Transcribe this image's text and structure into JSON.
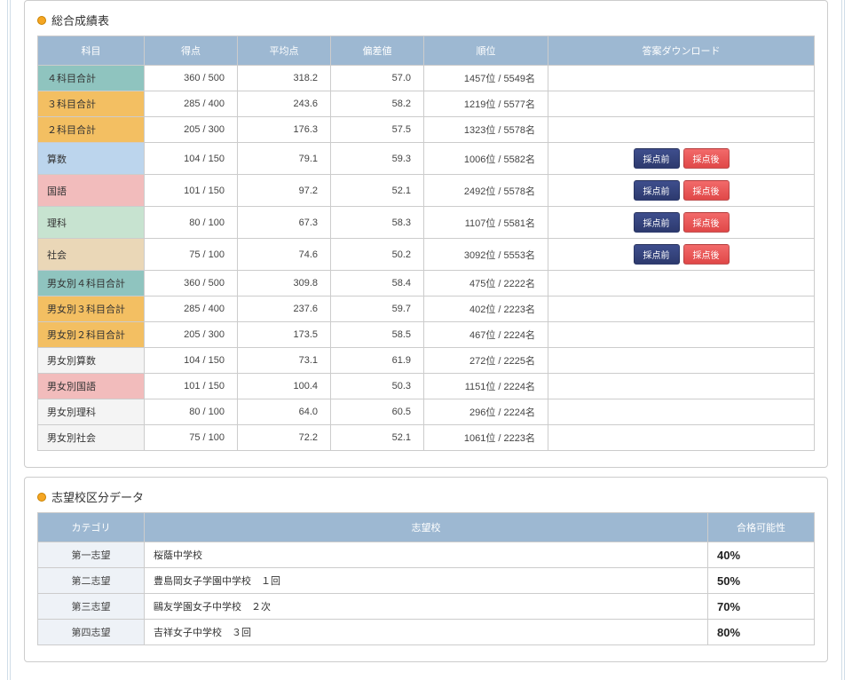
{
  "colors": {
    "header_bg": "#9db8d2",
    "header_text": "#ffffff",
    "row_teal": "#8fc4bf",
    "row_orange": "#f3bf62",
    "row_blue": "#bcd5ed",
    "row_pink": "#f2bcbc",
    "row_mint": "#c7e3d0",
    "row_beige": "#ead7b7",
    "row_plain": "#f4f4f4",
    "cat_bg": "#eef2f7",
    "btn_blue": "#2d3a6e",
    "btn_red": "#e04848"
  },
  "score": {
    "title": "総合成績表",
    "headers": [
      "科目",
      "得点",
      "平均点",
      "偏差値",
      "順位",
      "答案ダウンロード"
    ],
    "btn_before": "採点前",
    "btn_after": "採点後",
    "rows": [
      {
        "subject": "４科目合計",
        "color": "row_teal",
        "score": "360 / 500",
        "avg": "318.2",
        "dev": "57.0",
        "rank": "1457位 / 5549名",
        "buttons": false
      },
      {
        "subject": "３科目合計",
        "color": "row_orange",
        "score": "285 / 400",
        "avg": "243.6",
        "dev": "58.2",
        "rank": "1219位 / 5577名",
        "buttons": false
      },
      {
        "subject": "２科目合計",
        "color": "row_orange",
        "score": "205 / 300",
        "avg": "176.3",
        "dev": "57.5",
        "rank": "1323位 / 5578名",
        "buttons": false
      },
      {
        "subject": "算数",
        "color": "row_blue",
        "score": "104 / 150",
        "avg": "79.1",
        "dev": "59.3",
        "rank": "1006位 / 5582名",
        "buttons": true
      },
      {
        "subject": "国語",
        "color": "row_pink",
        "score": "101 / 150",
        "avg": "97.2",
        "dev": "52.1",
        "rank": "2492位 / 5578名",
        "buttons": true
      },
      {
        "subject": "理科",
        "color": "row_mint",
        "score": "80 / 100",
        "avg": "67.3",
        "dev": "58.3",
        "rank": "1107位 / 5581名",
        "buttons": true
      },
      {
        "subject": "社会",
        "color": "row_beige",
        "score": "75 / 100",
        "avg": "74.6",
        "dev": "50.2",
        "rank": "3092位 / 5553名",
        "buttons": true
      },
      {
        "subject": "男女別４科目合計",
        "color": "row_teal",
        "score": "360 / 500",
        "avg": "309.8",
        "dev": "58.4",
        "rank": "475位 / 2222名",
        "buttons": false
      },
      {
        "subject": "男女別３科目合計",
        "color": "row_orange",
        "score": "285 / 400",
        "avg": "237.6",
        "dev": "59.7",
        "rank": "402位 / 2223名",
        "buttons": false
      },
      {
        "subject": "男女別２科目合計",
        "color": "row_orange",
        "score": "205 / 300",
        "avg": "173.5",
        "dev": "58.5",
        "rank": "467位 / 2224名",
        "buttons": false
      },
      {
        "subject": "男女別算数",
        "color": "row_plain",
        "score": "104 / 150",
        "avg": "73.1",
        "dev": "61.9",
        "rank": "272位 / 2225名",
        "buttons": false
      },
      {
        "subject": "男女別国語",
        "color": "row_pink",
        "score": "101 / 150",
        "avg": "100.4",
        "dev": "50.3",
        "rank": "1151位 / 2224名",
        "buttons": false
      },
      {
        "subject": "男女別理科",
        "color": "row_plain",
        "score": "80 / 100",
        "avg": "64.0",
        "dev": "60.5",
        "rank": "296位 / 2224名",
        "buttons": false
      },
      {
        "subject": "男女別社会",
        "color": "row_plain",
        "score": "75 / 100",
        "avg": "72.2",
        "dev": "52.1",
        "rank": "1061位 / 2223名",
        "buttons": false
      }
    ]
  },
  "pref": {
    "title": "志望校区分データ",
    "headers": [
      "カテゴリ",
      "志望校",
      "合格可能性"
    ],
    "rows": [
      {
        "cat": "第一志望",
        "school": "桜蔭中学校",
        "pct": "40%"
      },
      {
        "cat": "第二志望",
        "school": "豊島岡女子学園中学校　１回",
        "pct": "50%"
      },
      {
        "cat": "第三志望",
        "school": "鷗友学園女子中学校　２次",
        "pct": "70%"
      },
      {
        "cat": "第四志望",
        "school": "吉祥女子中学校　３回",
        "pct": "80%"
      }
    ]
  }
}
